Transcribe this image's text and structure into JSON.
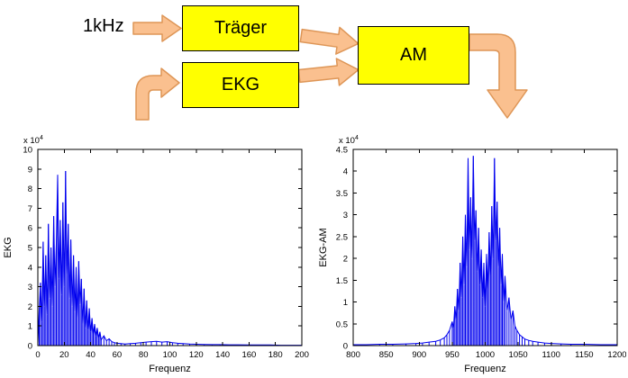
{
  "diagram": {
    "input_label": "1kHz",
    "blocks": {
      "traeger": "Träger",
      "ekg": "EKG",
      "am": "AM"
    },
    "colors": {
      "block_fill": "#FFFF00",
      "block_border": "#000000",
      "arrow_fill": "#FAC08F",
      "arrow_stroke": "#DE9657"
    }
  },
  "chart_data": [
    {
      "type": "line",
      "title": "",
      "xlabel": "Frequenz",
      "ylabel": "EKG",
      "scale_base": "x 10",
      "scale_exp": "4",
      "line_color": "#0000EE",
      "xlim": [
        0,
        200
      ],
      "ylim": [
        0,
        10
      ],
      "xticks": [
        0,
        20,
        40,
        60,
        80,
        100,
        120,
        140,
        160,
        180,
        200
      ],
      "yticks": [
        0,
        1,
        2,
        3,
        4,
        5,
        6,
        7,
        8,
        9,
        10
      ],
      "grid": false,
      "points": [
        [
          0,
          0.1
        ],
        [
          1,
          1.8
        ],
        [
          2,
          3.2
        ],
        [
          3,
          1.2
        ],
        [
          4,
          5.3
        ],
        [
          5,
          2.0
        ],
        [
          6,
          4.6
        ],
        [
          7,
          1.6
        ],
        [
          8,
          6.2
        ],
        [
          9,
          2.4
        ],
        [
          10,
          5.0
        ],
        [
          11,
          2.0
        ],
        [
          12,
          6.6
        ],
        [
          13,
          3.0
        ],
        [
          14,
          5.2
        ],
        [
          15,
          8.7
        ],
        [
          16,
          3.4
        ],
        [
          17,
          6.4
        ],
        [
          18,
          2.6
        ],
        [
          19,
          7.3
        ],
        [
          20,
          3.0
        ],
        [
          21,
          8.9
        ],
        [
          22,
          3.6
        ],
        [
          23,
          6.2
        ],
        [
          24,
          2.4
        ],
        [
          25,
          5.4
        ],
        [
          26,
          2.0
        ],
        [
          27,
          4.6
        ],
        [
          28,
          1.7
        ],
        [
          29,
          4.0
        ],
        [
          30,
          1.4
        ],
        [
          31,
          4.3
        ],
        [
          32,
          2.1
        ],
        [
          33,
          3.4
        ],
        [
          34,
          1.1
        ],
        [
          35,
          2.9
        ],
        [
          36,
          0.9
        ],
        [
          37,
          2.3
        ],
        [
          38,
          0.8
        ],
        [
          39,
          1.9
        ],
        [
          40,
          0.7
        ],
        [
          41,
          1.4
        ],
        [
          42,
          0.6
        ],
        [
          43,
          1.1
        ],
        [
          44,
          0.5
        ],
        [
          45,
          0.9
        ],
        [
          46,
          0.4
        ],
        [
          47,
          0.7
        ],
        [
          48,
          0.3
        ],
        [
          50,
          0.5
        ],
        [
          52,
          0.25
        ],
        [
          54,
          0.35
        ],
        [
          56,
          0.2
        ],
        [
          58,
          0.15
        ],
        [
          60,
          0.12
        ],
        [
          63,
          0.1
        ],
        [
          66,
          0.08
        ],
        [
          70,
          0.1
        ],
        [
          74,
          0.12
        ],
        [
          78,
          0.15
        ],
        [
          82,
          0.18
        ],
        [
          86,
          0.2
        ],
        [
          90,
          0.22
        ],
        [
          94,
          0.18
        ],
        [
          98,
          0.2
        ],
        [
          102,
          0.15
        ],
        [
          106,
          0.12
        ],
        [
          110,
          0.1
        ],
        [
          115,
          0.08
        ],
        [
          120,
          0.07
        ],
        [
          126,
          0.06
        ],
        [
          132,
          0.05
        ],
        [
          138,
          0.05
        ],
        [
          145,
          0.04
        ],
        [
          152,
          0.04
        ],
        [
          160,
          0.03
        ],
        [
          168,
          0.03
        ],
        [
          176,
          0.03
        ],
        [
          184,
          0.02
        ],
        [
          192,
          0.02
        ],
        [
          200,
          0.02
        ]
      ]
    },
    {
      "type": "line",
      "title": "",
      "xlabel": "Frequenz",
      "ylabel": "EKG-AM",
      "scale_base": "x 10",
      "scale_exp": "4",
      "line_color": "#0000EE",
      "xlim": [
        800,
        1200
      ],
      "ylim": [
        0,
        4.5
      ],
      "xticks": [
        800,
        850,
        900,
        950,
        1000,
        1050,
        1100,
        1150,
        1200
      ],
      "yticks": [
        0,
        0.5,
        1,
        1.5,
        2,
        2.5,
        3,
        3.5,
        4,
        4.5
      ],
      "grid": false,
      "points": [
        [
          800,
          0.02
        ],
        [
          820,
          0.02
        ],
        [
          840,
          0.03
        ],
        [
          860,
          0.03
        ],
        [
          880,
          0.04
        ],
        [
          895,
          0.05
        ],
        [
          905,
          0.06
        ],
        [
          915,
          0.08
        ],
        [
          925,
          0.1
        ],
        [
          932,
          0.13
        ],
        [
          938,
          0.18
        ],
        [
          942,
          0.25
        ],
        [
          946,
          0.35
        ],
        [
          950,
          0.55
        ],
        [
          952,
          0.4
        ],
        [
          954,
          0.9
        ],
        [
          956,
          0.6
        ],
        [
          958,
          1.3
        ],
        [
          960,
          0.8
        ],
        [
          962,
          1.9
        ],
        [
          964,
          1.1
        ],
        [
          966,
          2.5
        ],
        [
          968,
          1.4
        ],
        [
          970,
          3.0
        ],
        [
          972,
          1.8
        ],
        [
          974,
          4.3
        ],
        [
          976,
          2.2
        ],
        [
          978,
          3.4
        ],
        [
          980,
          2.0
        ],
        [
          982,
          4.35
        ],
        [
          984,
          2.4
        ],
        [
          986,
          3.1
        ],
        [
          988,
          1.7
        ],
        [
          990,
          2.7
        ],
        [
          992,
          1.4
        ],
        [
          994,
          2.2
        ],
        [
          996,
          1.1
        ],
        [
          998,
          1.9
        ],
        [
          1000,
          0.9
        ],
        [
          1002,
          2.1
        ],
        [
          1004,
          1.3
        ],
        [
          1006,
          2.6
        ],
        [
          1008,
          1.6
        ],
        [
          1010,
          3.2
        ],
        [
          1012,
          2.0
        ],
        [
          1014,
          4.3
        ],
        [
          1016,
          2.4
        ],
        [
          1018,
          3.3
        ],
        [
          1020,
          1.8
        ],
        [
          1022,
          2.7
        ],
        [
          1024,
          1.4
        ],
        [
          1026,
          2.1
        ],
        [
          1028,
          1.0
        ],
        [
          1030,
          1.6
        ],
        [
          1033,
          0.8
        ],
        [
          1036,
          1.1
        ],
        [
          1039,
          0.6
        ],
        [
          1042,
          0.8
        ],
        [
          1045,
          0.45
        ],
        [
          1048,
          0.35
        ],
        [
          1052,
          0.25
        ],
        [
          1056,
          0.2
        ],
        [
          1060,
          0.15
        ],
        [
          1066,
          0.12
        ],
        [
          1072,
          0.1
        ],
        [
          1080,
          0.08
        ],
        [
          1090,
          0.06
        ],
        [
          1100,
          0.05
        ],
        [
          1115,
          0.04
        ],
        [
          1130,
          0.03
        ],
        [
          1150,
          0.03
        ],
        [
          1175,
          0.02
        ],
        [
          1200,
          0.02
        ]
      ]
    }
  ]
}
